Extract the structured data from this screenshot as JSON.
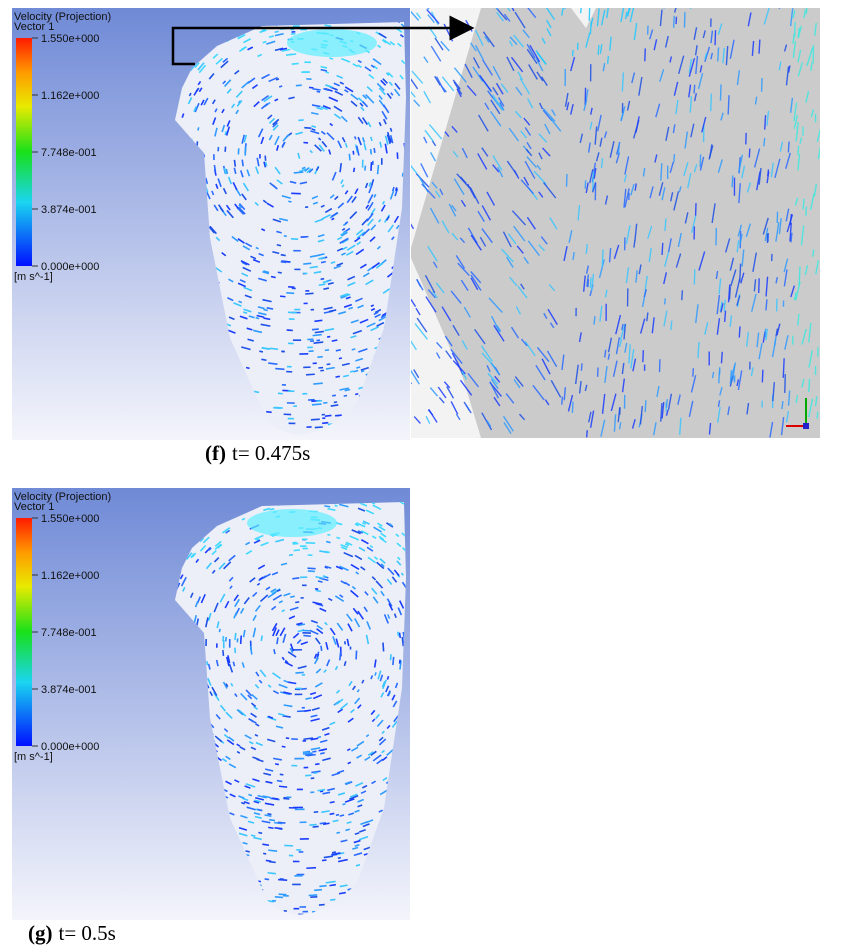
{
  "panels": [
    {
      "legend": {
        "title": "Velocity (Projection)",
        "subtitle": "Vector 1",
        "labels": [
          "1.550e+000",
          "1.162e+000",
          "7.748e-001",
          "3.874e-001",
          "0.000e+000"
        ],
        "unit": "[m s^-1]"
      },
      "caption": {
        "label": "(f)",
        "text": "t= 0.475s"
      }
    },
    {
      "legend": {
        "title": "Velocity (Projection)",
        "subtitle": "Vector 1",
        "labels": [
          "1.550e+000",
          "1.162e+000",
          "7.748e-001",
          "3.874e-001",
          "0.000e+000"
        ],
        "unit": "[m s^-1]"
      },
      "caption": {
        "label": "(g)",
        "text": "t= 0.5s"
      }
    }
  ]
}
